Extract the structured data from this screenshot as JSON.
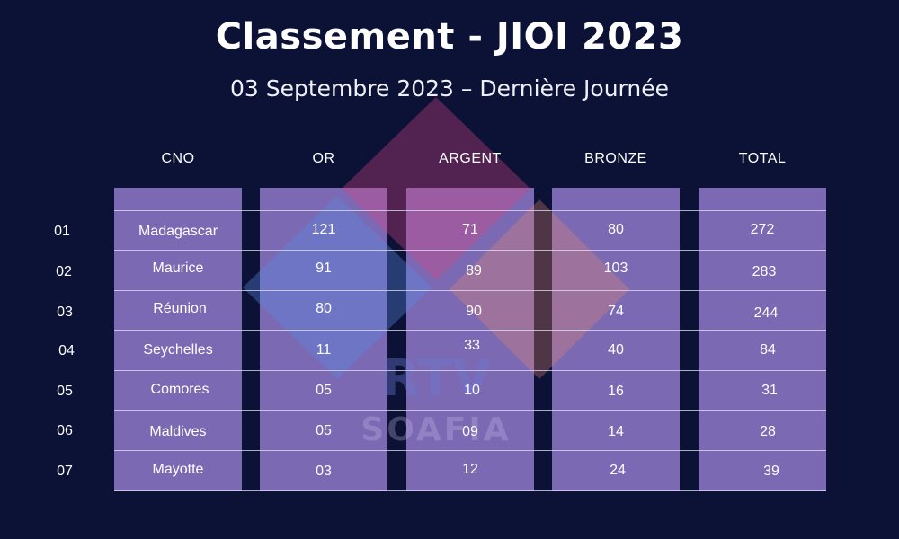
{
  "title": "Classement - JIOI 2023",
  "subtitle": "03 Septembre 2023 – Dernière Journée",
  "watermark": {
    "line1": "RTV",
    "line2": "SOAFIA"
  },
  "columns": [
    "CNO",
    "OR",
    "ARGENT",
    "BRONZE",
    "TOTAL"
  ],
  "rows": [
    {
      "rank": "01",
      "cno": "Madagascar",
      "or": "121",
      "argent": "71",
      "bronze": "80",
      "total": "272"
    },
    {
      "rank": "02",
      "cno": "Maurice",
      "or": "91",
      "argent": "89",
      "bronze": "103",
      "total": "283"
    },
    {
      "rank": "03",
      "cno": "Réunion",
      "or": "80",
      "argent": "90",
      "bronze": "74",
      "total": "244"
    },
    {
      "rank": "04",
      "cno": "Seychelles",
      "or": "11",
      "argent": "33",
      "bronze": "40",
      "total": "84"
    },
    {
      "rank": "05",
      "cno": "Comores",
      "or": "05",
      "argent": "10",
      "bronze": "16",
      "total": "31"
    },
    {
      "rank": "06",
      "cno": "Maldives",
      "or": "05",
      "argent": "09",
      "bronze": "14",
      "total": "28"
    },
    {
      "rank": "07",
      "cno": "Mayotte",
      "or": "03",
      "argent": "12",
      "bronze": "24",
      "total": "39"
    }
  ]
}
